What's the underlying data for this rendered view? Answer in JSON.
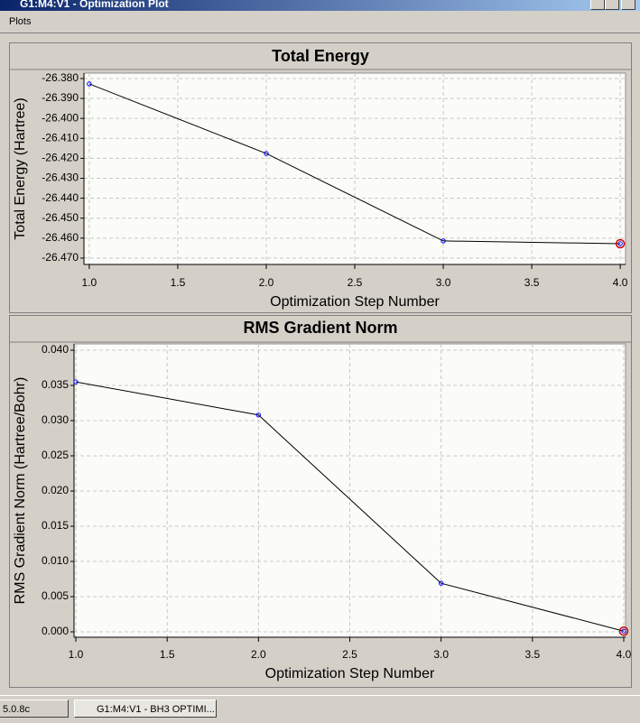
{
  "window": {
    "title": "G1:M4:V1 - Optimization Plot"
  },
  "menu": [
    "Plots"
  ],
  "taskbar": [
    "5.0.8c",
    "G1:M4:V1 - BH3 OPTIMI..."
  ],
  "chart_data": [
    {
      "type": "line",
      "title": "Total Energy",
      "xlabel": "Optimization Step Number",
      "ylabel": "Total Energy (Hartree)",
      "x": [
        1,
        2,
        3,
        4
      ],
      "values": [
        -26.3827,
        -26.4176,
        -26.4614,
        -26.4628
      ],
      "color": "#000000",
      "marker_color": "#0000ff",
      "grid": true,
      "xlim": [
        0.97,
        4.03
      ],
      "xticks": [
        {
          "value": 1,
          "label": "1.0"
        },
        1.5,
        {
          "value": 2,
          "label": "2.0"
        },
        2.5,
        {
          "value": 3,
          "label": "3.0"
        },
        3.5,
        {
          "value": 4,
          "label": "4.0"
        }
      ],
      "ylim": [
        -26.4732,
        -26.3773
      ],
      "yticks": [
        {
          "value": -26.38,
          "label": "-26.380"
        },
        {
          "value": -26.39,
          "label": "-26.390"
        },
        {
          "value": -26.4,
          "label": "-26.400"
        },
        {
          "value": -26.41,
          "label": "-26.410"
        },
        {
          "value": -26.42,
          "label": "-26.420"
        },
        {
          "value": -26.43,
          "label": "-26.430"
        },
        {
          "value": -26.44,
          "label": "-26.440"
        },
        {
          "value": -26.45,
          "label": "-26.450"
        },
        {
          "value": -26.46,
          "label": "-26.460"
        },
        {
          "value": -26.47,
          "label": "-26.470"
        }
      ]
    },
    {
      "type": "line",
      "title": "RMS Gradient Norm",
      "xlabel": "Optimization Step Number",
      "ylabel": "RMS Gradient Norm (Hartree/Bohr)",
      "x": [
        1,
        2,
        3,
        4
      ],
      "values": [
        0.0355,
        0.0308,
        0.0069,
        0.0001
      ],
      "color": "#000000",
      "marker_color": "#0000ff",
      "grid": true,
      "xlim": [
        0.99,
        4.01
      ],
      "xticks": [
        {
          "value": 1,
          "label": "1.0"
        },
        1.5,
        {
          "value": 2,
          "label": "2.0"
        },
        2.5,
        {
          "value": 3,
          "label": "3.0"
        },
        3.5,
        {
          "value": 4,
          "label": "4.0"
        }
      ],
      "ylim": [
        -0.00077,
        0.0409
      ],
      "yticks": [
        {
          "value": 0,
          "label": "0.000"
        },
        0.005,
        {
          "value": 0.01,
          "label": "0.010"
        },
        0.015,
        {
          "value": 0.02,
          "label": "0.020"
        },
        0.025,
        {
          "value": 0.03,
          "label": "0.030"
        },
        0.035,
        {
          "value": 0.04,
          "label": "0.040"
        }
      ]
    }
  ]
}
